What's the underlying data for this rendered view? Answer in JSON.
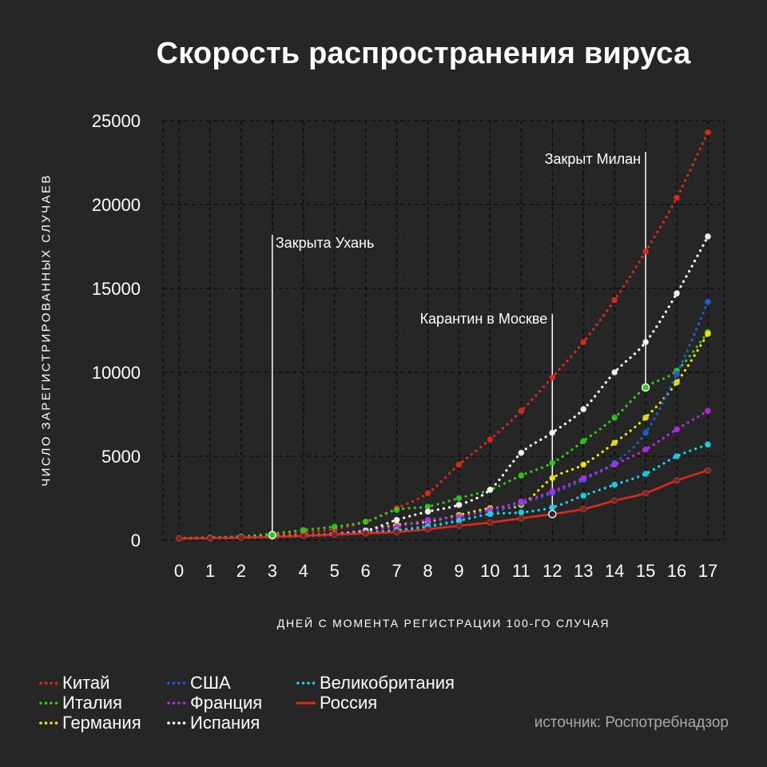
{
  "title": "Скорость распространения вируса",
  "source": "источник: Роспотребнадзор",
  "chart_data": {
    "type": "line",
    "title": "Скорость распространения вируса",
    "xlabel": "ДНЕЙ С МОМЕНТА РЕГИСТРАЦИИ 100-ГО СЛУЧАЯ",
    "ylabel": "ЧИСЛО ЗАРЕГИСТРИРОВАННЫХ СЛУЧАЕВ",
    "xlim": [
      0,
      17
    ],
    "ylim": [
      0,
      25000
    ],
    "x_ticks": [
      "0",
      "1",
      "2",
      "3",
      "4",
      "5",
      "6",
      "7",
      "8",
      "9",
      "10",
      "11",
      "12",
      "13",
      "14",
      "15",
      "16",
      "17"
    ],
    "y_ticks": [
      "0",
      "5000",
      "10000",
      "15000",
      "20000",
      "25000"
    ],
    "grid": true,
    "legend_position": "bottom",
    "x": [
      0,
      1,
      2,
      3,
      4,
      5,
      6,
      7,
      8,
      9,
      10,
      11,
      12,
      13,
      14,
      15,
      16,
      17
    ],
    "series": [
      {
        "name": "Китай",
        "color": "#e02a1c",
        "style": "dotted",
        "values": [
          100,
          150,
          200,
          300,
          450,
          650,
          1100,
          1900,
          2800,
          4500,
          6000,
          7700,
          9700,
          11800,
          14300,
          17200,
          20400,
          24300
        ]
      },
      {
        "name": "Италия",
        "color": "#35c81e",
        "style": "dotted",
        "values": [
          100,
          150,
          220,
          380,
          600,
          800,
          1100,
          1800,
          2000,
          2500,
          3000,
          3850,
          4600,
          5900,
          7300,
          9100,
          10100,
          12400
        ]
      },
      {
        "name": "Германия",
        "color": "#f0e81e",
        "style": "dotted",
        "values": [
          100,
          130,
          170,
          230,
          290,
          380,
          580,
          900,
          1100,
          1500,
          1900,
          2100,
          3700,
          4500,
          5800,
          7300,
          9400,
          12300
        ]
      },
      {
        "name": "США",
        "color": "#1f5fd6",
        "style": "dotted",
        "values": [
          100,
          120,
          160,
          210,
          260,
          320,
          450,
          600,
          900,
          1200,
          1600,
          2200,
          2800,
          3600,
          4600,
          6400,
          9900,
          14200
        ]
      },
      {
        "name": "Франция",
        "color": "#b62ee0",
        "style": "dotted",
        "values": [
          100,
          130,
          180,
          210,
          280,
          380,
          600,
          800,
          1200,
          1400,
          1800,
          2300,
          2900,
          3700,
          4500,
          5400,
          6600,
          7700
        ]
      },
      {
        "name": "Испания",
        "color": "#ffffff",
        "style": "dotted",
        "values": [
          100,
          120,
          150,
          200,
          250,
          350,
          550,
          1200,
          1700,
          2100,
          3000,
          5200,
          6400,
          7800,
          10000,
          11800,
          14700,
          18100
        ]
      },
      {
        "name": "Великобритания",
        "color": "#1fd4e8",
        "style": "dotted",
        "values": [
          100,
          120,
          150,
          200,
          260,
          320,
          460,
          590,
          800,
          1150,
          1550,
          1650,
          1950,
          2650,
          3300,
          3950,
          5000,
          5700
        ]
      },
      {
        "name": "Россия",
        "color": "#e02a1c",
        "style": "solid",
        "values": [
          100,
          110,
          150,
          200,
          250,
          330,
          400,
          480,
          650,
          850,
          1050,
          1300,
          1550,
          1850,
          2350,
          2800,
          3550,
          4150
        ]
      }
    ],
    "annotations": [
      {
        "text": "Закрыта Ухань",
        "x": 3,
        "y": 300
      },
      {
        "text": "Карантин в Москве",
        "x": 12,
        "y": 1550
      },
      {
        "text": "Закрыт Милан",
        "x": 15,
        "y": 9100
      }
    ]
  }
}
